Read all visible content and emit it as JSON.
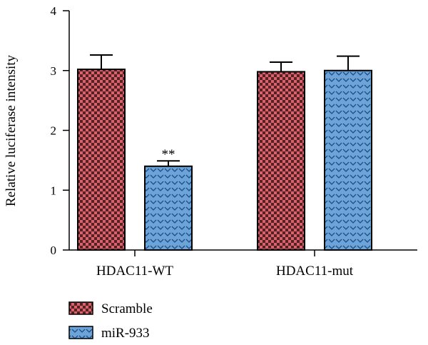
{
  "chart_data": {
    "type": "bar",
    "ylabel": "Relative luciferase intensity",
    "xlabel": "",
    "ylim": [
      0,
      4
    ],
    "yticks": [
      "0",
      "1",
      "2",
      "3",
      "4"
    ],
    "categories": [
      "HDAC11-WT",
      "HDAC11-mut"
    ],
    "series": [
      {
        "name": "Scramble",
        "values": [
          3.02,
          2.98
        ],
        "errors": [
          0.24,
          0.16
        ],
        "color": "#d4636b",
        "pattern": "checkerboard"
      },
      {
        "name": "miR-933",
        "values": [
          1.4,
          3.0
        ],
        "errors": [
          0.09,
          0.24
        ],
        "color": "#6ca3d8",
        "pattern": "chevron"
      }
    ],
    "annotations": [
      {
        "category": "HDAC11-WT",
        "series": "miR-933",
        "text": "**"
      }
    ],
    "legend_position": "bottom-left",
    "grid": false
  }
}
